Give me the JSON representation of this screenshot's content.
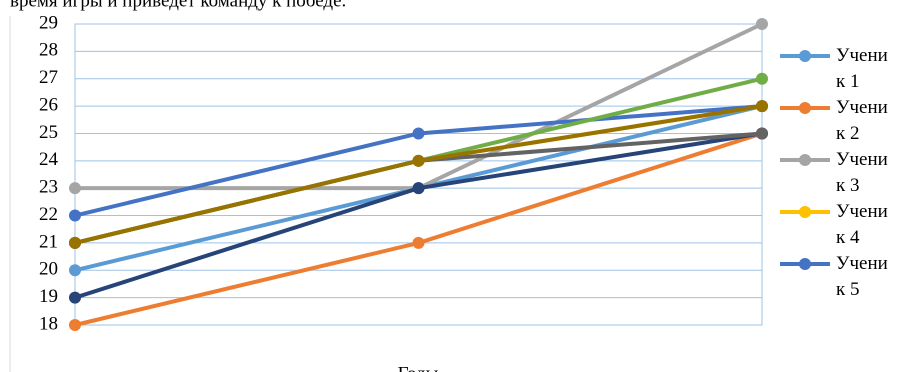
{
  "page_text": "время игры и приведет команду к победе.",
  "chart_data": {
    "type": "line",
    "x_label": "Годы",
    "categories": [
      null,
      null,
      null
    ],
    "series": [
      {
        "name": "Ученик 1",
        "color": "#5b9bd5",
        "values": [
          20,
          23,
          26
        ]
      },
      {
        "name": "Ученик 2",
        "color": "#ed7d31",
        "values": [
          18,
          21,
          25
        ]
      },
      {
        "name": "Ученик 3",
        "color": "#a5a5a5",
        "values": [
          23,
          23,
          29
        ]
      },
      {
        "name": "Ученик 4",
        "color": "#ffc000",
        "values": [
          21,
          24,
          26
        ]
      },
      {
        "name": "Ученик 5",
        "color": "#4472c4",
        "values": [
          22,
          25,
          26
        ]
      },
      {
        "color": "#70ad47",
        "values": [
          21,
          24,
          27
        ]
      },
      {
        "color": "#264478",
        "values": [
          19,
          23,
          25
        ]
      },
      {
        "color": "#636363",
        "values": [
          21,
          24,
          25
        ]
      },
      {
        "color": "#997300",
        "values": [
          21,
          24,
          26
        ]
      }
    ],
    "ylim": [
      18,
      29
    ],
    "yticks": [
      18,
      19,
      20,
      21,
      22,
      23,
      24,
      25,
      26,
      27,
      28,
      29
    ],
    "grid": true,
    "legend": "right"
  }
}
